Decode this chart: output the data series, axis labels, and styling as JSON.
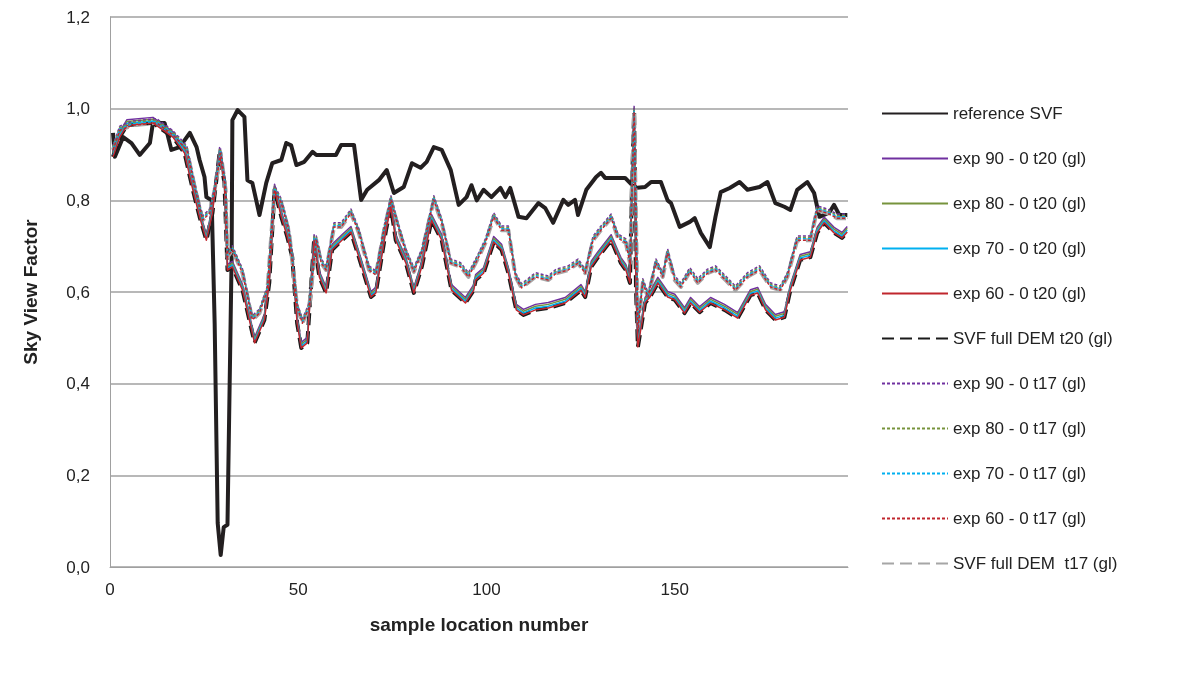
{
  "chart_data": {
    "type": "line",
    "xlabel": "sample location number",
    "ylabel": "Sky View Factor",
    "xlim": [
      0,
      196
    ],
    "xticks": [
      0,
      50,
      100,
      150
    ],
    "ylim": [
      0,
      1.2
    ],
    "yticks": [
      {
        "value": 0,
        "label": "0,0"
      },
      {
        "value": 0.2,
        "label": "0,2"
      },
      {
        "value": 0.4,
        "label": "0,4"
      },
      {
        "value": 0.6,
        "label": "0,6"
      },
      {
        "value": 0.8,
        "label": "0,8"
      },
      {
        "value": 1,
        "label": "1,0"
      },
      {
        "value": 1.2,
        "label": "1,2"
      }
    ],
    "grid": "y",
    "legend": "right",
    "marker": "none",
    "series": [
      {
        "name": "reference SVF",
        "color": "#231f20",
        "line_style": "solid",
        "x": [
          0.8,
          1.3,
          3.5,
          5.7,
          7.9,
          10.6,
          11.4,
          14.5,
          16.3,
          18.5,
          21.2,
          23,
          23.8,
          25.1,
          25.6,
          27,
          27.8,
          28.6,
          29.4,
          30.2,
          31.2,
          32.3,
          32.5,
          33.9,
          35.7,
          36.5,
          37.8,
          39.7,
          41.5,
          43.1,
          45.5,
          46.8,
          48.1,
          49.5,
          51.6,
          53.8,
          54.8,
          60,
          61.4,
          64.8,
          66.7,
          68.3,
          71.4,
          73.5,
          75.4,
          78,
          80.2,
          82.5,
          84.1,
          86,
          88.1,
          90.5,
          92.6,
          94.7,
          96,
          97.4,
          99.2,
          101.3,
          103.7,
          105,
          106.3,
          108.5,
          110.6,
          113.8,
          115.6,
          117.7,
          120.4,
          121.7,
          123.5,
          124.3,
          126.5,
          129.1,
          130.4,
          131.5,
          136.8,
          139.4,
          142.1,
          143.7,
          146.3,
          148.1,
          149,
          151.3,
          154,
          155.3,
          156.9,
          159.3,
          160.8,
          162.2,
          164.6,
          167.2,
          169.3,
          172.5,
          174.6,
          176.7,
          179.1,
          180.7,
          182.5,
          185.2,
          187,
          188.4,
          191,
          192.3,
          193.7,
          195.8
        ],
        "values": [
          0.947,
          0.895,
          0.938,
          0.925,
          0.899,
          0.925,
          0.969,
          0.969,
          0.91,
          0.916,
          0.947,
          0.916,
          0.888,
          0.851,
          0.807,
          0.8,
          0.53,
          0.096,
          0.026,
          0.087,
          0.092,
          0.676,
          0.975,
          0.997,
          0.982,
          0.844,
          0.838,
          0.768,
          0.838,
          0.881,
          0.888,
          0.925,
          0.92,
          0.877,
          0.884,
          0.906,
          0.899,
          0.899,
          0.921,
          0.921,
          0.801,
          0.823,
          0.844,
          0.866,
          0.816,
          0.829,
          0.881,
          0.871,
          0.884,
          0.916,
          0.91,
          0.866,
          0.79,
          0.807,
          0.833,
          0.8,
          0.823,
          0.807,
          0.827,
          0.807,
          0.827,
          0.764,
          0.761,
          0.794,
          0.783,
          0.751,
          0.801,
          0.79,
          0.801,
          0.768,
          0.823,
          0.851,
          0.86,
          0.849,
          0.849,
          0.827,
          0.829,
          0.84,
          0.84,
          0.8,
          0.794,
          0.742,
          0.753,
          0.761,
          0.729,
          0.698,
          0.764,
          0.818,
          0.827,
          0.84,
          0.823,
          0.829,
          0.84,
          0.794,
          0.786,
          0.779,
          0.823,
          0.84,
          0.816,
          0.764,
          0.773,
          0.79,
          0.768,
          0.768
        ]
      },
      {
        "name": "exp 90 - 0 t20 (gl)",
        "color": "#7030a0",
        "line_style": "solid",
        "x": [
          0.8,
          2.6,
          4.5,
          11.4,
          16.7,
          19.8,
          22,
          23.8,
          25.6,
          27.2,
          29.1,
          30.4,
          31.2,
          32.5,
          35.2,
          38.4,
          41,
          42.3,
          43.7,
          45.5,
          47.1,
          48.4,
          49.7,
          50.8,
          52.4,
          54.2,
          55.6,
          57.4,
          59,
          61.6,
          64,
          66.1,
          69.3,
          70.6,
          73.3,
          74.6,
          75.9,
          78.6,
          80.7,
          82.8,
          85.4,
          88.1,
          90.7,
          94.4,
          96.6,
          97.1,
          99.2,
          101.9,
          104,
          105.8,
          107.9,
          109.8,
          113,
          116.4,
          120.9,
          125.1,
          126.2,
          127.8,
          129.6,
          133.1,
          135.7,
          137,
          138.1,
          138.6,
          139.2,
          139.7,
          140.2,
          142.1,
          143.4,
          145.5,
          148.1,
          150,
          152.6,
          154.2,
          156.6,
          159.5,
          163.2,
          166.7,
          170.1,
          172,
          174.1,
          176.7,
          179.1,
          180.7,
          183.3,
          186,
          187.8,
          189.7,
          192.3,
          194.4,
          195.8
        ],
        "values": [
          0.907,
          0.95,
          0.976,
          0.981,
          0.95,
          0.915,
          0.835,
          0.776,
          0.725,
          0.784,
          0.915,
          0.85,
          0.66,
          0.667,
          0.616,
          0.501,
          0.551,
          0.632,
          0.835,
          0.776,
          0.732,
          0.688,
          0.544,
          0.49,
          0.501,
          0.725,
          0.645,
          0.61,
          0.704,
          0.725,
          0.743,
          0.688,
          0.601,
          0.61,
          0.747,
          0.798,
          0.725,
          0.675,
          0.61,
          0.667,
          0.769,
          0.725,
          0.616,
          0.588,
          0.616,
          0.638,
          0.653,
          0.721,
          0.704,
          0.653,
          0.573,
          0.562,
          0.573,
          0.577,
          0.588,
          0.616,
          0.601,
          0.667,
          0.688,
          0.725,
          0.675,
          0.66,
          0.632,
          0.835,
          1.005,
          0.616,
          0.492,
          0.588,
          0.601,
          0.632,
          0.601,
          0.595,
          0.566,
          0.588,
          0.568,
          0.588,
          0.573,
          0.555,
          0.605,
          0.61,
          0.573,
          0.551,
          0.557,
          0.616,
          0.682,
          0.688,
          0.741,
          0.763,
          0.741,
          0.73,
          0.743
        ]
      },
      {
        "name": "exp 80 - 0 t20 (gl)",
        "color": "#77933c",
        "line_style": "solid",
        "x": [
          0.8,
          2.6,
          4.5,
          11.4,
          16.7,
          19.8,
          22,
          23.8,
          25.6,
          27.2,
          29.1,
          30.4,
          31.2,
          32.5,
          35.2,
          38.4,
          41,
          42.3,
          43.7,
          45.5,
          47.1,
          48.4,
          49.7,
          50.8,
          52.4,
          54.2,
          55.6,
          57.4,
          59,
          61.6,
          64,
          66.1,
          69.3,
          70.6,
          73.3,
          74.6,
          75.9,
          78.6,
          80.7,
          82.8,
          85.4,
          88.1,
          90.7,
          94.4,
          96.6,
          97.1,
          99.2,
          101.9,
          104,
          105.8,
          107.9,
          109.8,
          113,
          116.4,
          120.9,
          125.1,
          126.2,
          127.8,
          129.6,
          133.1,
          135.7,
          137,
          138.1,
          138.6,
          139.2,
          139.7,
          140.2,
          142.1,
          143.4,
          145.5,
          148.1,
          150,
          152.6,
          154.2,
          156.6,
          159.5,
          163.2,
          166.7,
          170.1,
          172,
          174.1,
          176.7,
          179.1,
          180.7,
          183.3,
          186,
          187.8,
          189.7,
          192.3,
          194.4,
          195.8
        ],
        "values": [
          0.903,
          0.946,
          0.972,
          0.977,
          0.946,
          0.911,
          0.831,
          0.772,
          0.721,
          0.78,
          0.911,
          0.846,
          0.656,
          0.663,
          0.612,
          0.497,
          0.547,
          0.628,
          0.831,
          0.772,
          0.728,
          0.684,
          0.54,
          0.486,
          0.497,
          0.721,
          0.641,
          0.606,
          0.7,
          0.721,
          0.739,
          0.684,
          0.597,
          0.606,
          0.743,
          0.794,
          0.721,
          0.671,
          0.606,
          0.663,
          0.765,
          0.721,
          0.612,
          0.584,
          0.612,
          0.634,
          0.649,
          0.717,
          0.7,
          0.649,
          0.569,
          0.558,
          0.569,
          0.573,
          0.584,
          0.612,
          0.597,
          0.663,
          0.684,
          0.721,
          0.671,
          0.656,
          0.628,
          0.831,
          1.001,
          0.612,
          0.488,
          0.584,
          0.597,
          0.628,
          0.597,
          0.591,
          0.562,
          0.584,
          0.564,
          0.584,
          0.569,
          0.551,
          0.601,
          0.606,
          0.569,
          0.547,
          0.553,
          0.612,
          0.678,
          0.684,
          0.737,
          0.759,
          0.737,
          0.726,
          0.739
        ]
      },
      {
        "name": "exp 70 - 0 t20 (gl)",
        "color": "#00b0f0",
        "line_style": "solid",
        "x": [
          0.8,
          2.6,
          4.5,
          11.4,
          16.7,
          19.8,
          22,
          23.8,
          25.6,
          27.2,
          29.1,
          30.4,
          31.2,
          32.5,
          35.2,
          38.4,
          41,
          42.3,
          43.7,
          45.5,
          47.1,
          48.4,
          49.7,
          50.8,
          52.4,
          54.2,
          55.6,
          57.4,
          59,
          61.6,
          64,
          66.1,
          69.3,
          70.6,
          73.3,
          74.6,
          75.9,
          78.6,
          80.7,
          82.8,
          85.4,
          88.1,
          90.7,
          94.4,
          96.6,
          97.1,
          99.2,
          101.9,
          104,
          105.8,
          107.9,
          109.8,
          113,
          116.4,
          120.9,
          125.1,
          126.2,
          127.8,
          129.6,
          133.1,
          135.7,
          137,
          138.1,
          138.6,
          139.2,
          139.7,
          140.2,
          142.1,
          143.4,
          145.5,
          148.1,
          150,
          152.6,
          154.2,
          156.6,
          159.5,
          163.2,
          166.7,
          170.1,
          172,
          174.1,
          176.7,
          179.1,
          180.7,
          183.3,
          186,
          187.8,
          189.7,
          192.3,
          194.4,
          195.8
        ],
        "values": [
          0.899,
          0.942,
          0.968,
          0.973,
          0.942,
          0.907,
          0.827,
          0.768,
          0.717,
          0.776,
          0.907,
          0.842,
          0.652,
          0.659,
          0.608,
          0.493,
          0.543,
          0.624,
          0.827,
          0.768,
          0.724,
          0.68,
          0.536,
          0.482,
          0.493,
          0.717,
          0.637,
          0.602,
          0.696,
          0.717,
          0.735,
          0.68,
          0.593,
          0.602,
          0.739,
          0.79,
          0.717,
          0.667,
          0.602,
          0.659,
          0.761,
          0.717,
          0.608,
          0.58,
          0.608,
          0.63,
          0.645,
          0.713,
          0.696,
          0.645,
          0.565,
          0.554,
          0.565,
          0.569,
          0.58,
          0.608,
          0.593,
          0.659,
          0.68,
          0.717,
          0.667,
          0.652,
          0.624,
          0.827,
          0.997,
          0.608,
          0.484,
          0.58,
          0.593,
          0.624,
          0.593,
          0.587,
          0.558,
          0.58,
          0.56,
          0.58,
          0.565,
          0.547,
          0.597,
          0.602,
          0.565,
          0.543,
          0.549,
          0.608,
          0.674,
          0.68,
          0.733,
          0.755,
          0.733,
          0.722,
          0.735
        ]
      },
      {
        "name": "exp 60 - 0 t20 (gl)",
        "color": "#c0262d",
        "line_style": "solid",
        "x": [
          0.8,
          2.6,
          4.5,
          11.4,
          16.7,
          19.8,
          22,
          23.8,
          25.6,
          27.2,
          29.1,
          30.4,
          31.2,
          32.5,
          35.2,
          38.4,
          41,
          42.3,
          43.7,
          45.5,
          47.1,
          48.4,
          49.7,
          50.8,
          52.4,
          54.2,
          55.6,
          57.4,
          59,
          61.6,
          64,
          66.1,
          69.3,
          70.6,
          73.3,
          74.6,
          75.9,
          78.6,
          80.7,
          82.8,
          85.4,
          88.1,
          90.7,
          94.4,
          96.6,
          97.1,
          99.2,
          101.9,
          104,
          105.8,
          107.9,
          109.8,
          113,
          116.4,
          120.9,
          125.1,
          126.2,
          127.8,
          129.6,
          133.1,
          135.7,
          137,
          138.1,
          138.6,
          139.2,
          139.7,
          140.2,
          142.1,
          143.4,
          145.5,
          148.1,
          150,
          152.6,
          154.2,
          156.6,
          159.5,
          163.2,
          166.7,
          170.1,
          172,
          174.1,
          176.7,
          179.1,
          180.7,
          183.3,
          186,
          187.8,
          189.7,
          192.3,
          194.4,
          195.8
        ],
        "values": [
          0.895,
          0.938,
          0.964,
          0.969,
          0.938,
          0.903,
          0.823,
          0.764,
          0.713,
          0.772,
          0.903,
          0.838,
          0.648,
          0.655,
          0.604,
          0.489,
          0.539,
          0.62,
          0.823,
          0.764,
          0.72,
          0.676,
          0.532,
          0.478,
          0.489,
          0.713,
          0.633,
          0.598,
          0.692,
          0.713,
          0.731,
          0.676,
          0.589,
          0.598,
          0.735,
          0.786,
          0.713,
          0.663,
          0.598,
          0.655,
          0.757,
          0.713,
          0.604,
          0.576,
          0.604,
          0.626,
          0.641,
          0.709,
          0.692,
          0.641,
          0.561,
          0.55,
          0.561,
          0.565,
          0.576,
          0.604,
          0.589,
          0.655,
          0.676,
          0.713,
          0.663,
          0.648,
          0.62,
          0.823,
          0.993,
          0.604,
          0.48,
          0.576,
          0.589,
          0.62,
          0.589,
          0.583,
          0.554,
          0.576,
          0.556,
          0.576,
          0.561,
          0.543,
          0.593,
          0.598,
          0.561,
          0.539,
          0.545,
          0.604,
          0.67,
          0.676,
          0.729,
          0.751,
          0.729,
          0.718,
          0.731
        ]
      },
      {
        "name": "SVF full DEM t20 (gl)",
        "color": "#1a1a1a",
        "line_style": "dashed",
        "x": [
          0.8,
          2.6,
          4.5,
          11.4,
          16.7,
          19.8,
          22,
          23.8,
          25.6,
          27.2,
          29.1,
          30.4,
          31.2,
          32.5,
          35.2,
          38.4,
          41,
          42.3,
          43.7,
          45.5,
          47.1,
          48.4,
          49.7,
          50.8,
          52.4,
          54.2,
          55.6,
          57.4,
          59,
          61.6,
          64,
          66.1,
          69.3,
          70.6,
          73.3,
          74.6,
          75.9,
          78.6,
          80.7,
          82.8,
          85.4,
          88.1,
          90.7,
          94.4,
          96.6,
          97.1,
          99.2,
          101.9,
          104,
          105.8,
          107.9,
          109.8,
          113,
          116.4,
          120.9,
          125.1,
          126.2,
          127.8,
          129.6,
          133.1,
          135.7,
          137,
          138.1,
          138.6,
          139.2,
          139.7,
          140.2,
          142.1,
          143.4,
          145.5,
          148.1,
          150,
          152.6,
          154.2,
          156.6,
          159.5,
          163.2,
          166.7,
          170.1,
          172,
          174.1,
          176.7,
          179.1,
          180.7,
          183.3,
          186,
          187.8,
          189.7,
          192.3,
          194.4,
          195.8
        ],
        "values": [
          0.895,
          0.938,
          0.964,
          0.969,
          0.938,
          0.903,
          0.823,
          0.764,
          0.713,
          0.772,
          0.903,
          0.838,
          0.648,
          0.655,
          0.604,
          0.489,
          0.539,
          0.62,
          0.823,
          0.764,
          0.72,
          0.676,
          0.532,
          0.478,
          0.489,
          0.713,
          0.633,
          0.598,
          0.692,
          0.713,
          0.731,
          0.676,
          0.589,
          0.598,
          0.735,
          0.786,
          0.713,
          0.663,
          0.598,
          0.655,
          0.757,
          0.713,
          0.604,
          0.576,
          0.604,
          0.626,
          0.641,
          0.709,
          0.692,
          0.641,
          0.561,
          0.55,
          0.561,
          0.565,
          0.576,
          0.604,
          0.589,
          0.655,
          0.676,
          0.713,
          0.663,
          0.648,
          0.62,
          0.823,
          0.993,
          0.604,
          0.48,
          0.576,
          0.589,
          0.62,
          0.589,
          0.583,
          0.554,
          0.576,
          0.556,
          0.576,
          0.561,
          0.543,
          0.593,
          0.598,
          0.561,
          0.539,
          0.545,
          0.604,
          0.67,
          0.676,
          0.729,
          0.751,
          0.729,
          0.718,
          0.731
        ]
      },
      {
        "name": "exp 90 - 0 t17 (gl)",
        "color": "#7030a0",
        "line_style": "dashed",
        "x": [
          0.8,
          2.6,
          6.1,
          12.4,
          16.7,
          20.4,
          22.5,
          24.6,
          26.5,
          27.8,
          29.4,
          30.7,
          31.2,
          32.5,
          35.2,
          37.8,
          39.7,
          41.8,
          43.7,
          45.5,
          47.6,
          49.7,
          51.1,
          52.9,
          54.8,
          56.1,
          57.4,
          59.5,
          61.4,
          64,
          66.1,
          68.8,
          70.6,
          72.8,
          74.6,
          76.2,
          78.6,
          80.7,
          82.8,
          86,
          88.1,
          90.5,
          93.1,
          95.2,
          97.9,
          99.7,
          101.9,
          104,
          105.8,
          107.7,
          109.3,
          113,
          116.4,
          118.5,
          121.7,
          124.3,
          126.2,
          128.3,
          130.4,
          133.1,
          134.9,
          137,
          138.1,
          139.2,
          140.2,
          141.5,
          142.9,
          145,
          146.8,
          148.1,
          150,
          151.6,
          154,
          156.1,
          158.7,
          160.8,
          163.5,
          166.1,
          169.3,
          172.5,
          175.4,
          178,
          179.9,
          182.5,
          186,
          187.8,
          190.5,
          193.1,
          195.8
        ],
        "values": [
          0.919,
          0.962,
          0.973,
          0.978,
          0.952,
          0.919,
          0.838,
          0.766,
          0.781,
          0.832,
          0.912,
          0.832,
          0.685,
          0.701,
          0.65,
          0.548,
          0.563,
          0.613,
          0.832,
          0.803,
          0.738,
          0.576,
          0.541,
          0.576,
          0.722,
          0.672,
          0.657,
          0.751,
          0.751,
          0.781,
          0.738,
          0.657,
          0.646,
          0.744,
          0.81,
          0.76,
          0.694,
          0.653,
          0.694,
          0.81,
          0.76,
          0.672,
          0.664,
          0.642,
          0.685,
          0.716,
          0.773,
          0.744,
          0.744,
          0.642,
          0.618,
          0.642,
          0.635,
          0.65,
          0.657,
          0.672,
          0.65,
          0.722,
          0.744,
          0.77,
          0.727,
          0.716,
          0.672,
          1.002,
          0.526,
          0.629,
          0.598,
          0.672,
          0.642,
          0.694,
          0.635,
          0.62,
          0.653,
          0.629,
          0.65,
          0.657,
          0.635,
          0.613,
          0.642,
          0.657,
          0.62,
          0.613,
          0.642,
          0.722,
          0.722,
          0.788,
          0.781,
          0.77,
          0.77
        ]
      },
      {
        "name": "exp 80 - 0 t17 (gl)",
        "color": "#77933c",
        "line_style": "dashed",
        "x": [
          0.8,
          2.6,
          6.1,
          12.4,
          16.7,
          20.4,
          22.5,
          24.6,
          26.5,
          27.8,
          29.4,
          30.7,
          31.2,
          32.5,
          35.2,
          37.8,
          39.7,
          41.8,
          43.7,
          45.5,
          47.6,
          49.7,
          51.1,
          52.9,
          54.8,
          56.1,
          57.4,
          59.5,
          61.4,
          64,
          66.1,
          68.8,
          70.6,
          72.8,
          74.6,
          76.2,
          78.6,
          80.7,
          82.8,
          86,
          88.1,
          90.5,
          93.1,
          95.2,
          97.9,
          99.7,
          101.9,
          104,
          105.8,
          107.7,
          109.3,
          113,
          116.4,
          118.5,
          121.7,
          124.3,
          126.2,
          128.3,
          130.4,
          133.1,
          134.9,
          137,
          138.1,
          139.2,
          140.2,
          141.5,
          142.9,
          145,
          146.8,
          148.1,
          150,
          151.6,
          154,
          156.1,
          158.7,
          160.8,
          163.5,
          166.1,
          169.3,
          172.5,
          175.4,
          178,
          179.9,
          182.5,
          186,
          187.8,
          190.5,
          193.1,
          195.8
        ],
        "values": [
          0.916,
          0.959,
          0.97,
          0.975,
          0.949,
          0.916,
          0.835,
          0.763,
          0.778,
          0.829,
          0.909,
          0.829,
          0.682,
          0.698,
          0.647,
          0.545,
          0.56,
          0.61,
          0.829,
          0.8,
          0.735,
          0.573,
          0.538,
          0.573,
          0.719,
          0.669,
          0.654,
          0.748,
          0.748,
          0.778,
          0.735,
          0.654,
          0.643,
          0.741,
          0.807,
          0.757,
          0.691,
          0.65,
          0.691,
          0.807,
          0.757,
          0.669,
          0.661,
          0.639,
          0.682,
          0.713,
          0.77,
          0.741,
          0.741,
          0.639,
          0.615,
          0.639,
          0.632,
          0.647,
          0.654,
          0.669,
          0.647,
          0.719,
          0.741,
          0.767,
          0.724,
          0.713,
          0.669,
          0.999,
          0.523,
          0.626,
          0.595,
          0.669,
          0.639,
          0.691,
          0.632,
          0.617,
          0.65,
          0.626,
          0.647,
          0.654,
          0.632,
          0.61,
          0.639,
          0.654,
          0.617,
          0.61,
          0.639,
          0.719,
          0.719,
          0.785,
          0.778,
          0.767,
          0.767
        ]
      },
      {
        "name": "exp 70 - 0 t17 (gl)",
        "color": "#00b0f0",
        "line_style": "dashed",
        "x": [
          0.8,
          2.6,
          6.1,
          12.4,
          16.7,
          20.4,
          22.5,
          24.6,
          26.5,
          27.8,
          29.4,
          30.7,
          31.2,
          32.5,
          35.2,
          37.8,
          39.7,
          41.8,
          43.7,
          45.5,
          47.6,
          49.7,
          51.1,
          52.9,
          54.8,
          56.1,
          57.4,
          59.5,
          61.4,
          64,
          66.1,
          68.8,
          70.6,
          72.8,
          74.6,
          76.2,
          78.6,
          80.7,
          82.8,
          86,
          88.1,
          90.5,
          93.1,
          95.2,
          97.9,
          99.7,
          101.9,
          104,
          105.8,
          107.7,
          109.3,
          113,
          116.4,
          118.5,
          121.7,
          124.3,
          126.2,
          128.3,
          130.4,
          133.1,
          134.9,
          137,
          138.1,
          139.2,
          140.2,
          141.5,
          142.9,
          145,
          146.8,
          148.1,
          150,
          151.6,
          154,
          156.1,
          158.7,
          160.8,
          163.5,
          166.1,
          169.3,
          172.5,
          175.4,
          178,
          179.9,
          182.5,
          186,
          187.8,
          190.5,
          193.1,
          195.8
        ],
        "values": [
          0.913,
          0.956,
          0.967,
          0.972,
          0.946,
          0.913,
          0.832,
          0.76,
          0.775,
          0.826,
          0.906,
          0.826,
          0.679,
          0.695,
          0.644,
          0.542,
          0.557,
          0.607,
          0.826,
          0.797,
          0.732,
          0.57,
          0.535,
          0.57,
          0.716,
          0.666,
          0.651,
          0.745,
          0.745,
          0.775,
          0.732,
          0.651,
          0.64,
          0.738,
          0.804,
          0.754,
          0.688,
          0.647,
          0.688,
          0.804,
          0.754,
          0.666,
          0.658,
          0.636,
          0.679,
          0.71,
          0.767,
          0.738,
          0.738,
          0.636,
          0.612,
          0.636,
          0.629,
          0.644,
          0.651,
          0.666,
          0.644,
          0.716,
          0.738,
          0.764,
          0.721,
          0.71,
          0.666,
          0.996,
          0.52,
          0.623,
          0.592,
          0.666,
          0.636,
          0.688,
          0.629,
          0.614,
          0.647,
          0.623,
          0.644,
          0.651,
          0.629,
          0.607,
          0.636,
          0.651,
          0.614,
          0.607,
          0.636,
          0.716,
          0.716,
          0.782,
          0.775,
          0.764,
          0.764
        ]
      },
      {
        "name": "exp 60 - 0 t17 (gl)",
        "color": "#c0262d",
        "line_style": "dashed",
        "x": [
          0.8,
          2.6,
          6.1,
          12.4,
          16.7,
          20.4,
          22.5,
          24.6,
          26.5,
          27.8,
          29.4,
          30.7,
          31.2,
          32.5,
          35.2,
          37.8,
          39.7,
          41.8,
          43.7,
          45.5,
          47.6,
          49.7,
          51.1,
          52.9,
          54.8,
          56.1,
          57.4,
          59.5,
          61.4,
          64,
          66.1,
          68.8,
          70.6,
          72.8,
          74.6,
          76.2,
          78.6,
          80.7,
          82.8,
          86,
          88.1,
          90.5,
          93.1,
          95.2,
          97.9,
          99.7,
          101.9,
          104,
          105.8,
          107.7,
          109.3,
          113,
          116.4,
          118.5,
          121.7,
          124.3,
          126.2,
          128.3,
          130.4,
          133.1,
          134.9,
          137,
          138.1,
          139.2,
          140.2,
          141.5,
          142.9,
          145,
          146.8,
          148.1,
          150,
          151.6,
          154,
          156.1,
          158.7,
          160.8,
          163.5,
          166.1,
          169.3,
          172.5,
          175.4,
          178,
          179.9,
          182.5,
          186,
          187.8,
          190.5,
          193.1,
          195.8
        ],
        "values": [
          0.91,
          0.953,
          0.964,
          0.969,
          0.943,
          0.91,
          0.829,
          0.757,
          0.772,
          0.823,
          0.903,
          0.823,
          0.676,
          0.692,
          0.641,
          0.539,
          0.554,
          0.604,
          0.823,
          0.794,
          0.729,
          0.567,
          0.532,
          0.567,
          0.713,
          0.663,
          0.648,
          0.742,
          0.742,
          0.772,
          0.729,
          0.648,
          0.637,
          0.735,
          0.801,
          0.751,
          0.685,
          0.644,
          0.685,
          0.801,
          0.751,
          0.663,
          0.655,
          0.633,
          0.676,
          0.707,
          0.764,
          0.735,
          0.735,
          0.633,
          0.609,
          0.633,
          0.626,
          0.641,
          0.648,
          0.663,
          0.641,
          0.713,
          0.735,
          0.761,
          0.718,
          0.707,
          0.663,
          0.993,
          0.517,
          0.62,
          0.589,
          0.663,
          0.633,
          0.685,
          0.626,
          0.611,
          0.644,
          0.62,
          0.641,
          0.648,
          0.626,
          0.604,
          0.633,
          0.648,
          0.611,
          0.604,
          0.633,
          0.713,
          0.713,
          0.779,
          0.772,
          0.761,
          0.761
        ]
      },
      {
        "name": "SVF full DEM  t17 (gl)",
        "color": "#a6a6a6",
        "line_style": "dashed",
        "x": [
          0.8,
          2.6,
          6.1,
          12.4,
          16.7,
          20.4,
          22.5,
          24.6,
          26.5,
          27.8,
          29.4,
          30.7,
          31.2,
          32.5,
          35.2,
          37.8,
          39.7,
          41.8,
          43.7,
          45.5,
          47.6,
          49.7,
          51.1,
          52.9,
          54.8,
          56.1,
          57.4,
          59.5,
          61.4,
          64,
          66.1,
          68.8,
          70.6,
          72.8,
          74.6,
          76.2,
          78.6,
          80.7,
          82.8,
          86,
          88.1,
          90.5,
          93.1,
          95.2,
          97.9,
          99.7,
          101.9,
          104,
          105.8,
          107.7,
          109.3,
          113,
          116.4,
          118.5,
          121.7,
          124.3,
          126.2,
          128.3,
          130.4,
          133.1,
          134.9,
          137,
          138.1,
          139.2,
          140.2,
          141.5,
          142.9,
          145,
          146.8,
          148.1,
          150,
          151.6,
          154,
          156.1,
          158.7,
          160.8,
          163.5,
          166.1,
          169.3,
          172.5,
          175.4,
          178,
          179.9,
          182.5,
          186,
          187.8,
          190.5,
          193.1,
          195.8
        ],
        "values": [
          0.91,
          0.953,
          0.964,
          0.969,
          0.943,
          0.91,
          0.829,
          0.757,
          0.772,
          0.823,
          0.903,
          0.823,
          0.676,
          0.692,
          0.641,
          0.539,
          0.554,
          0.604,
          0.823,
          0.794,
          0.729,
          0.567,
          0.532,
          0.567,
          0.713,
          0.663,
          0.648,
          0.742,
          0.742,
          0.772,
          0.729,
          0.648,
          0.637,
          0.735,
          0.801,
          0.751,
          0.685,
          0.644,
          0.685,
          0.801,
          0.751,
          0.663,
          0.655,
          0.633,
          0.676,
          0.707,
          0.764,
          0.735,
          0.735,
          0.633,
          0.609,
          0.633,
          0.626,
          0.641,
          0.648,
          0.663,
          0.641,
          0.713,
          0.735,
          0.761,
          0.718,
          0.707,
          0.663,
          0.993,
          0.517,
          0.62,
          0.589,
          0.663,
          0.633,
          0.685,
          0.626,
          0.611,
          0.644,
          0.62,
          0.641,
          0.648,
          0.626,
          0.604,
          0.633,
          0.648,
          0.611,
          0.604,
          0.633,
          0.713,
          0.713,
          0.779,
          0.772,
          0.761,
          0.761
        ]
      }
    ]
  }
}
